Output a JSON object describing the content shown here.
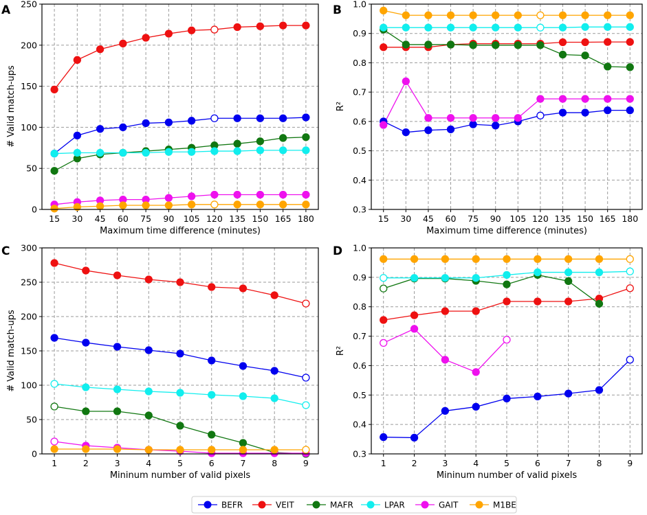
{
  "legend": [
    {
      "key": "BEFR",
      "color": "#0000ee"
    },
    {
      "key": "VEIT",
      "color": "#ee1111"
    },
    {
      "key": "MAFR",
      "color": "#117711"
    },
    {
      "key": "LPAR",
      "color": "#11eeee"
    },
    {
      "key": "GAIT",
      "color": "#ee11ee"
    },
    {
      "key": "M1BE",
      "color": "#ffa500"
    }
  ],
  "chart_data": [
    {
      "panel": "A",
      "type": "line",
      "xlabel": "Maximum time difference (minutes)",
      "ylabel": "# Valid match-ups",
      "x": [
        15,
        30,
        45,
        60,
        75,
        90,
        105,
        120,
        135,
        150,
        165,
        180
      ],
      "ylim": [
        0,
        250
      ],
      "yticks": [
        0,
        50,
        100,
        150,
        200,
        250
      ],
      "ytick_labels": [
        "0",
        "50",
        "100",
        "150",
        "200",
        "250"
      ],
      "series": [
        {
          "name": "BEFR",
          "values": [
            68,
            90,
            98,
            100,
            105,
            106,
            108,
            111,
            111,
            111,
            111,
            112
          ],
          "hollow": [
            7
          ]
        },
        {
          "name": "VEIT",
          "values": [
            146,
            182,
            195,
            202,
            209,
            214,
            218,
            219,
            222,
            223,
            224,
            224
          ],
          "hollow": [
            7
          ]
        },
        {
          "name": "MAFR",
          "values": [
            47,
            62,
            67,
            69,
            71,
            73,
            75,
            78,
            80,
            83,
            87,
            88
          ],
          "hollow": []
        },
        {
          "name": "LPAR",
          "values": [
            68,
            69,
            69,
            69,
            69,
            70,
            70,
            71,
            71,
            72,
            72,
            72
          ],
          "hollow": []
        },
        {
          "name": "GAIT",
          "values": [
            6,
            9,
            11,
            12,
            12,
            14,
            16,
            18,
            18,
            18,
            18,
            18
          ],
          "hollow": []
        },
        {
          "name": "M1BE",
          "values": [
            1,
            3,
            4,
            5,
            5,
            5,
            6,
            6,
            6,
            6,
            6,
            6
          ],
          "hollow": [
            7
          ]
        }
      ]
    },
    {
      "panel": "B",
      "type": "line",
      "xlabel": "Maximum time difference (minutes)",
      "ylabel": "R²",
      "x": [
        15,
        30,
        45,
        60,
        75,
        90,
        105,
        120,
        135,
        150,
        165,
        180
      ],
      "ylim": [
        0.3,
        1.0
      ],
      "yticks": [
        0.3,
        0.4,
        0.5,
        0.6,
        0.7,
        0.8,
        0.9,
        1.0
      ],
      "ytick_labels": [
        "0.3",
        "0.4",
        "0.5",
        "0.6",
        "0.7",
        "0.8",
        "0.9",
        "1.0"
      ],
      "series": [
        {
          "name": "BEFR",
          "values": [
            0.6,
            0.563,
            0.57,
            0.573,
            0.59,
            0.586,
            0.6,
            0.62,
            0.63,
            0.63,
            0.638,
            0.638
          ],
          "hollow": [
            7
          ]
        },
        {
          "name": "VEIT",
          "values": [
            0.853,
            0.853,
            0.853,
            0.862,
            0.865,
            0.865,
            0.865,
            0.865,
            0.87,
            0.87,
            0.871,
            0.871
          ],
          "hollow": []
        },
        {
          "name": "MAFR",
          "values": [
            0.913,
            0.862,
            0.862,
            0.862,
            0.86,
            0.86,
            0.86,
            0.86,
            0.828,
            0.825,
            0.787,
            0.785
          ],
          "hollow": []
        },
        {
          "name": "LPAR",
          "values": [
            0.92,
            0.92,
            0.92,
            0.92,
            0.92,
            0.92,
            0.92,
            0.92,
            0.92,
            0.922,
            0.922,
            0.922
          ],
          "hollow": [
            7
          ]
        },
        {
          "name": "GAIT",
          "values": [
            0.588,
            0.737,
            0.612,
            0.612,
            0.612,
            0.612,
            0.612,
            0.677,
            0.677,
            0.677,
            0.677,
            0.677
          ],
          "hollow": []
        },
        {
          "name": "M1BE",
          "values": [
            0.978,
            0.962,
            0.962,
            0.962,
            0.962,
            0.962,
            0.962,
            0.962,
            0.962,
            0.962,
            0.962,
            0.962
          ],
          "hollow": [
            7
          ]
        }
      ]
    },
    {
      "panel": "C",
      "type": "line",
      "xlabel": "Mininum number of valid pixels",
      "ylabel": "# Valid match-ups",
      "x": [
        1,
        2,
        3,
        4,
        5,
        6,
        7,
        8,
        9
      ],
      "ylim": [
        0,
        300
      ],
      "yticks": [
        0,
        50,
        100,
        150,
        200,
        250,
        300
      ],
      "ytick_labels": [
        "0",
        "50",
        "100",
        "150",
        "200",
        "250",
        "300"
      ],
      "series": [
        {
          "name": "BEFR",
          "values": [
            169,
            162,
            156,
            151,
            146,
            136,
            128,
            121,
            111
          ],
          "hollow": [
            8
          ]
        },
        {
          "name": "VEIT",
          "values": [
            278,
            267,
            260,
            254,
            250,
            243,
            241,
            231,
            219
          ],
          "hollow": [
            8
          ]
        },
        {
          "name": "MAFR",
          "values": [
            69,
            62,
            62,
            56,
            41,
            28,
            16,
            2,
            0
          ],
          "hollow": [
            0
          ]
        },
        {
          "name": "LPAR",
          "values": [
            102,
            97,
            94,
            91,
            89,
            86,
            84,
            81,
            71
          ],
          "hollow": [
            0,
            8
          ]
        },
        {
          "name": "GAIT",
          "values": [
            18,
            12,
            9,
            6,
            4,
            1,
            1,
            1,
            1
          ],
          "hollow": [
            0
          ]
        },
        {
          "name": "M1BE",
          "values": [
            7,
            7,
            7,
            6,
            6,
            6,
            6,
            6,
            6
          ],
          "hollow": [
            8
          ]
        }
      ]
    },
    {
      "panel": "D",
      "type": "line",
      "xlabel": "Mininum number of valid pixels",
      "ylabel": "R²",
      "x": [
        1,
        2,
        3,
        4,
        5,
        6,
        7,
        8,
        9
      ],
      "ylim": [
        0.3,
        1.0
      ],
      "yticks": [
        0.3,
        0.4,
        0.5,
        0.6,
        0.7,
        0.8,
        0.9,
        1.0
      ],
      "ytick_labels": [
        "0.3",
        "0.4",
        "0.5",
        "0.6",
        "0.7",
        "0.8",
        "0.9",
        "1.0"
      ],
      "series": [
        {
          "name": "BEFR",
          "values": [
            0.357,
            0.355,
            0.446,
            0.46,
            0.488,
            0.495,
            0.505,
            0.517,
            0.62
          ],
          "hollow": [
            8
          ]
        },
        {
          "name": "VEIT",
          "values": [
            0.755,
            0.771,
            0.785,
            0.785,
            0.818,
            0.818,
            0.818,
            0.828,
            0.863
          ],
          "hollow": [
            8
          ]
        },
        {
          "name": "MAFR",
          "values": [
            0.862,
            0.896,
            0.896,
            0.888,
            0.876,
            0.908,
            0.887,
            0.81,
            null
          ],
          "hollow": [
            0
          ]
        },
        {
          "name": "LPAR",
          "values": [
            0.898,
            0.898,
            0.898,
            0.898,
            0.908,
            0.917,
            0.917,
            0.917,
            0.92
          ],
          "hollow": [
            0,
            8
          ]
        },
        {
          "name": "GAIT",
          "values": [
            0.677,
            0.725,
            0.62,
            0.578,
            0.688,
            null,
            null,
            null,
            null
          ],
          "hollow": [
            0,
            4
          ]
        },
        {
          "name": "M1BE",
          "values": [
            0.962,
            0.962,
            0.962,
            0.962,
            0.962,
            0.962,
            0.962,
            0.962,
            0.962
          ],
          "hollow": [
            8
          ]
        }
      ]
    }
  ]
}
